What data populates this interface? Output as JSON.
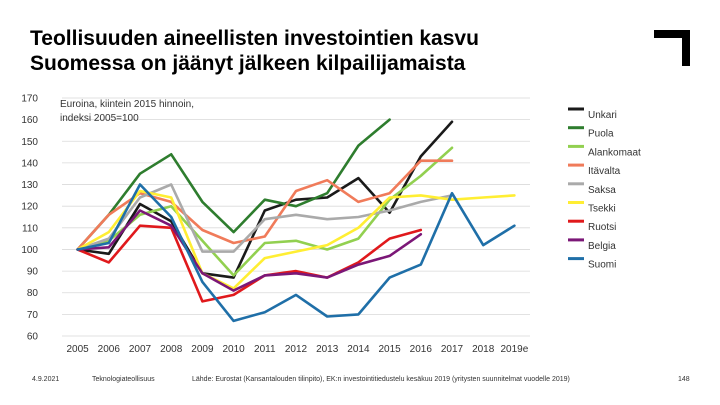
{
  "header": {
    "title_line1": "Teollisuuden aineellisten investointien kasvu",
    "title_line2": "Suomessa on jäänyt jälkeen kilpailijamaista"
  },
  "footer": {
    "date": "4.9.2021",
    "org": "Teknologiateollisuus",
    "source": "Lähde: Eurostat (Kansantalouden tilinpito), EK:n investointitiedustelu kesäkuu 2019 (yritysten suunnitelmat vuodelle 2019)",
    "page": "148"
  },
  "chart_data": {
    "type": "line",
    "annotation_line1": "Euroina, kiintein 2015 hinnoin,",
    "annotation_line2": "indeksi 2005=100",
    "categories": [
      "2005",
      "2006",
      "2007",
      "2008",
      "2009",
      "2010",
      "2011",
      "2012",
      "2013",
      "2014",
      "2015",
      "2016",
      "2017",
      "2018",
      "2019e"
    ],
    "y_ticks": [
      60,
      70,
      80,
      90,
      100,
      110,
      120,
      130,
      140,
      150,
      160,
      170
    ],
    "ylim": [
      60,
      170
    ],
    "legend_position": "right",
    "series": [
      {
        "name": "Unkari",
        "color": "#1a1a1a",
        "values": [
          100,
          98,
          121,
          113,
          89,
          87,
          118,
          123,
          124,
          133,
          117,
          143,
          159,
          null,
          null
        ]
      },
      {
        "name": "Puola",
        "color": "#2e7d2e",
        "values": [
          100,
          116,
          135,
          144,
          122,
          108,
          123,
          120,
          126,
          148,
          160,
          null,
          null,
          null,
          null
        ]
      },
      {
        "name": "Alankomaat",
        "color": "#92d050",
        "values": [
          100,
          104,
          116,
          120,
          104,
          88,
          103,
          104,
          100,
          105,
          123,
          134,
          147,
          null,
          null
        ]
      },
      {
        "name": "Itävalta",
        "color": "#f07b5a",
        "values": [
          100,
          116,
          126,
          122,
          109,
          103,
          106,
          127,
          132,
          122,
          126,
          141,
          141,
          null,
          null
        ]
      },
      {
        "name": "Saksa",
        "color": "#aaaaaa",
        "values": [
          100,
          105,
          124,
          130,
          99,
          99,
          114,
          116,
          114,
          115,
          118,
          122,
          125,
          null,
          null
        ]
      },
      {
        "name": "Tsekki",
        "color": "#ffee33",
        "values": [
          100,
          108,
          127,
          124,
          89,
          82,
          96,
          99,
          102,
          110,
          124,
          125,
          123,
          124,
          125
        ]
      },
      {
        "name": "Ruotsi",
        "color": "#e0191c",
        "values": [
          100,
          94,
          111,
          110,
          76,
          79,
          88,
          90,
          87,
          94,
          105,
          109,
          null,
          null,
          null
        ]
      },
      {
        "name": "Belgia",
        "color": "#7b1777",
        "values": [
          100,
          101,
          118,
          111,
          89,
          81,
          88,
          89,
          87,
          93,
          97,
          107,
          null,
          null,
          null
        ]
      },
      {
        "name": "Suomi",
        "color": "#1f6fa8",
        "values": [
          100,
          103,
          130,
          115,
          85,
          67,
          71,
          79,
          69,
          70,
          87,
          93,
          126,
          102,
          111
        ]
      }
    ]
  }
}
